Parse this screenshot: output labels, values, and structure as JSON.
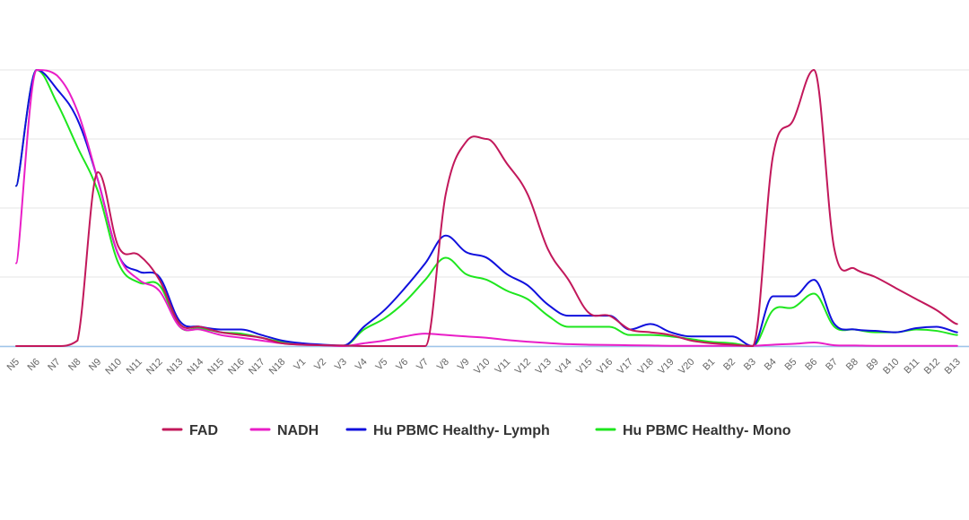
{
  "chart_data": {
    "type": "line",
    "title": "",
    "xlabel": "",
    "ylabel": "",
    "ylim": [
      0,
      1
    ],
    "grid": true,
    "legend_position": "bottom",
    "categories": [
      "N5",
      "N6",
      "N7",
      "N8",
      "N9",
      "N10",
      "N11",
      "N12",
      "N13",
      "N14",
      "N15",
      "N16",
      "N17",
      "N18",
      "V1",
      "V2",
      "V3",
      "V4",
      "V5",
      "V6",
      "V7",
      "V8",
      "V9",
      "V10",
      "V11",
      "V12",
      "V13",
      "V14",
      "V15",
      "V16",
      "V17",
      "V18",
      "V19",
      "V20",
      "B1",
      "B2",
      "B3",
      "B4",
      "B5",
      "B6",
      "B7",
      "B8",
      "B9",
      "B10",
      "B11",
      "B12",
      "B13"
    ],
    "series": [
      {
        "name": "FAD",
        "color": "#c2185b",
        "values": [
          0,
          0,
          0,
          0.02,
          0.63,
          0.36,
          0.33,
          0.24,
          0.08,
          0.07,
          0.05,
          0.04,
          0.03,
          0.01,
          0.005,
          0.003,
          0.002,
          0,
          0,
          0,
          0,
          0.55,
          0.74,
          0.75,
          0.66,
          0.55,
          0.35,
          0.24,
          0.12,
          0.11,
          0.06,
          0.05,
          0.04,
          0.02,
          0.01,
          0.005,
          0,
          0.69,
          0.82,
          1.0,
          0.35,
          0.28,
          0.25,
          0.21,
          0.17,
          0.13,
          0.08
        ]
      },
      {
        "name": "NADH",
        "color": "#e91ec7",
        "values": [
          0.3,
          1.0,
          0.98,
          0.85,
          0.6,
          0.33,
          0.24,
          0.2,
          0.07,
          0.06,
          0.04,
          0.03,
          0.02,
          0.01,
          0.005,
          0.003,
          0,
          0.01,
          0.02,
          0.035,
          0.045,
          0.04,
          0.035,
          0.03,
          0.022,
          0.016,
          0.011,
          0.007,
          0.005,
          0.004,
          0.003,
          0.002,
          0.001,
          0.001,
          0.001,
          0.001,
          0.001,
          0.005,
          0.008,
          0.013,
          0.003,
          0.002,
          0.001,
          0.001,
          0.001,
          0.001,
          0.001
        ]
      },
      {
        "name": "Hu PBMC Healthy- Lymph",
        "color": "#1010dd",
        "values": [
          0.58,
          1.0,
          0.93,
          0.82,
          0.6,
          0.33,
          0.27,
          0.25,
          0.09,
          0.07,
          0.06,
          0.06,
          0.04,
          0.02,
          0.01,
          0.005,
          0.002,
          0.07,
          0.13,
          0.21,
          0.3,
          0.4,
          0.34,
          0.32,
          0.26,
          0.22,
          0.15,
          0.11,
          0.11,
          0.11,
          0.06,
          0.08,
          0.05,
          0.035,
          0.035,
          0.035,
          0,
          0.18,
          0.18,
          0.24,
          0.08,
          0.06,
          0.055,
          0.05,
          0.065,
          0.07,
          0.05
        ]
      },
      {
        "name": "Hu PBMC Healthy- Mono",
        "color": "#1ee61e",
        "values": [
          0.58,
          1.0,
          0.88,
          0.72,
          0.56,
          0.3,
          0.23,
          0.22,
          0.07,
          0.065,
          0.05,
          0.045,
          0.03,
          0.015,
          0.008,
          0.004,
          0.001,
          0.06,
          0.1,
          0.16,
          0.24,
          0.32,
          0.26,
          0.24,
          0.2,
          0.17,
          0.11,
          0.07,
          0.07,
          0.07,
          0.04,
          0.04,
          0.035,
          0.025,
          0.015,
          0.01,
          0,
          0.13,
          0.14,
          0.19,
          0.07,
          0.06,
          0.05,
          0.05,
          0.06,
          0.055,
          0.04
        ]
      }
    ]
  }
}
